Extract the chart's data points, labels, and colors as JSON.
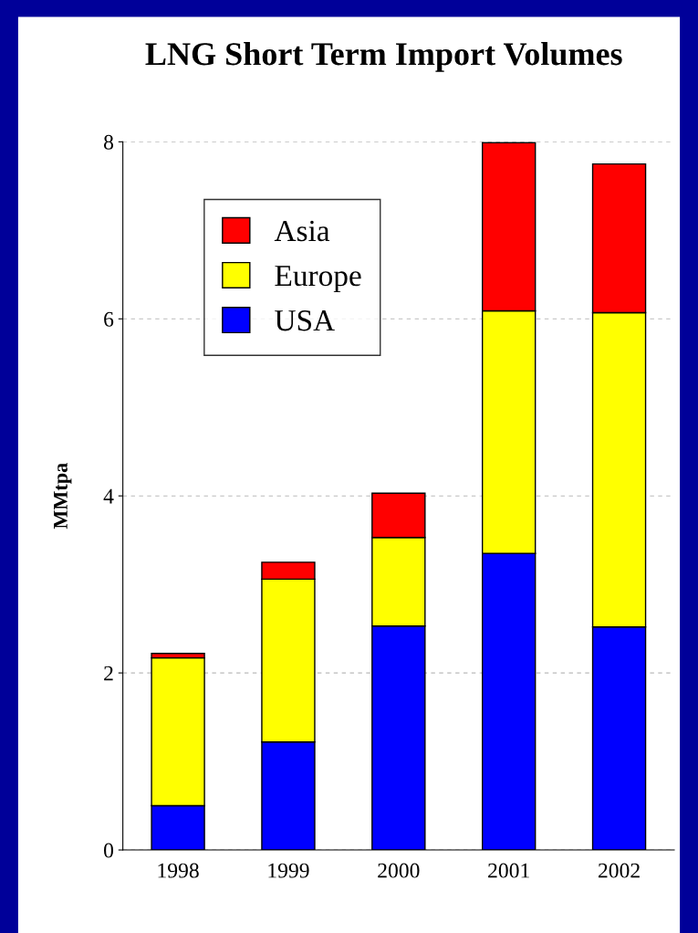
{
  "chart_data": {
    "type": "bar",
    "title": "LNG Short Term Import Volumes",
    "ylabel": "MMtpa",
    "categories": [
      "1998",
      "1999",
      "2000",
      "2001",
      "2002"
    ],
    "stacked": true,
    "series": [
      {
        "name": "USA",
        "color": "#0000ff",
        "values": [
          0.5,
          1.22,
          2.53,
          3.35,
          2.52
        ]
      },
      {
        "name": "Europe",
        "color": "#ffff00",
        "values": [
          1.67,
          1.84,
          1.0,
          2.74,
          3.55
        ]
      },
      {
        "name": "Asia",
        "color": "#ff0000",
        "values": [
          0.05,
          0.19,
          0.5,
          1.9,
          1.68
        ]
      }
    ],
    "ylim": [
      0,
      8
    ],
    "yticks": [
      0,
      2,
      4,
      6,
      8
    ],
    "grid": "y",
    "legend": "top left"
  }
}
